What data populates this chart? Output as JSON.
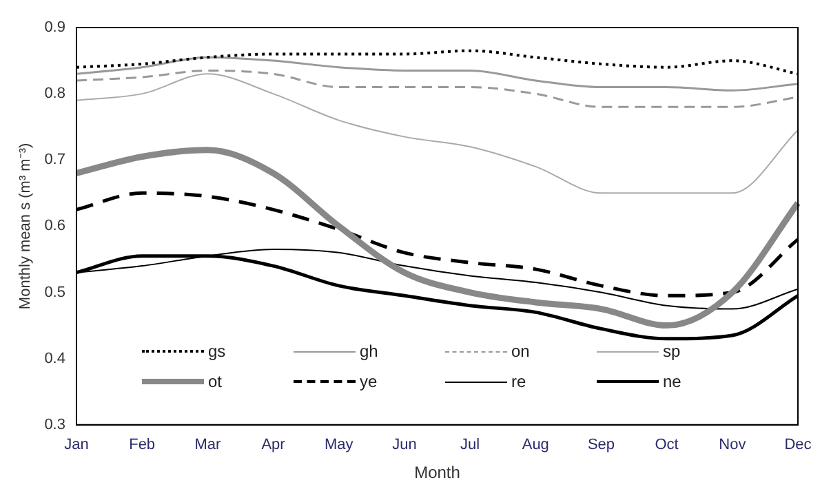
{
  "chart_data": {
    "type": "line",
    "xlabel": "Month",
    "ylabel": "Monthly mean s (m³ m⁻³)",
    "categories": [
      "Jan",
      "Feb",
      "Mar",
      "Apr",
      "May",
      "Jun",
      "Jul",
      "Aug",
      "Sep",
      "Oct",
      "Nov",
      "Dec"
    ],
    "ylim": [
      0.3,
      0.9
    ],
    "yticks": [
      0.3,
      0.4,
      0.5,
      0.6,
      0.7,
      0.8,
      0.9
    ],
    "grid": false,
    "legend": "bottom left",
    "marker": "none",
    "series": [
      {
        "name": "gs",
        "color": "#000000",
        "line_style": "dotted",
        "values": [
          0.84,
          0.845,
          0.855,
          0.86,
          0.86,
          0.86,
          0.865,
          0.855,
          0.845,
          0.84,
          0.85,
          0.83
        ]
      },
      {
        "name": "gh",
        "color": "#999999",
        "line_style": "solid",
        "values": [
          0.83,
          0.84,
          0.855,
          0.85,
          0.84,
          0.835,
          0.835,
          0.82,
          0.81,
          0.81,
          0.805,
          0.815
        ]
      },
      {
        "name": "on",
        "color": "#999999",
        "line_style": "dashed",
        "values": [
          0.82,
          0.825,
          0.835,
          0.83,
          0.81,
          0.81,
          0.81,
          0.8,
          0.78,
          0.78,
          0.78,
          0.795
        ]
      },
      {
        "name": "sp",
        "color": "#aaaaaa",
        "line_style": "solid",
        "values": [
          0.79,
          0.8,
          0.83,
          0.8,
          0.76,
          0.735,
          0.72,
          0.69,
          0.65,
          0.65,
          0.65,
          0.745
        ]
      },
      {
        "name": "ot",
        "color": "#888888",
        "line_style": "solid",
        "values": [
          0.68,
          0.705,
          0.715,
          0.68,
          0.6,
          0.53,
          0.5,
          0.485,
          0.475,
          0.45,
          0.5,
          0.635
        ]
      },
      {
        "name": "ye",
        "color": "#000000",
        "line_style": "dashed",
        "values": [
          0.625,
          0.65,
          0.645,
          0.625,
          0.595,
          0.56,
          0.545,
          0.535,
          0.51,
          0.495,
          0.5,
          0.58
        ]
      },
      {
        "name": "re",
        "color": "#000000",
        "line_style": "solid",
        "values": [
          0.53,
          0.54,
          0.555,
          0.565,
          0.56,
          0.54,
          0.525,
          0.515,
          0.5,
          0.48,
          0.475,
          0.505
        ]
      },
      {
        "name": "ne",
        "color": "#000000",
        "line_style": "solid",
        "values": [
          0.53,
          0.555,
          0.555,
          0.54,
          0.51,
          0.495,
          0.48,
          0.47,
          0.445,
          0.43,
          0.435,
          0.495
        ]
      }
    ]
  }
}
